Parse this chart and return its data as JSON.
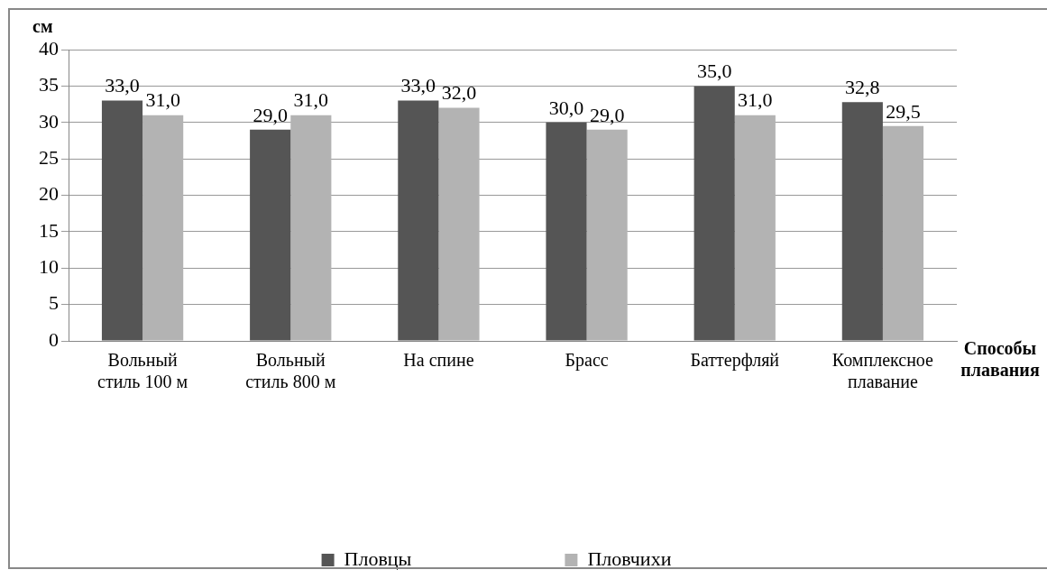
{
  "chart_data": {
    "type": "bar",
    "xlabel": "Способы плавания",
    "ylabel": "см",
    "categories": [
      "Вольный стиль 100 м",
      "Вольный стиль 800 м",
      "На спине",
      "Брасс",
      "Баттерфляй",
      "Комплексное плавание"
    ],
    "series": [
      {
        "name": "Пловцы",
        "color": "#555555",
        "values": [
          33.0,
          29.0,
          33.0,
          30.0,
          35.0,
          32.8
        ],
        "value_labels": [
          "33,0",
          "29,0",
          "33,0",
          "30,0",
          "35,0",
          "32,8"
        ]
      },
      {
        "name": "Пловчихи",
        "color": "#b3b3b3",
        "values": [
          31.0,
          31.0,
          32.0,
          29.0,
          31.0,
          29.5
        ],
        "value_labels": [
          "31,0",
          "31,0",
          "32,0",
          "29,0",
          "31,0",
          "29,5"
        ]
      }
    ],
    "ylim": [
      0,
      40
    ],
    "yticks": [
      0,
      5,
      10,
      15,
      20,
      25,
      30,
      35,
      40
    ],
    "grid": "y",
    "legend": "bottom"
  }
}
